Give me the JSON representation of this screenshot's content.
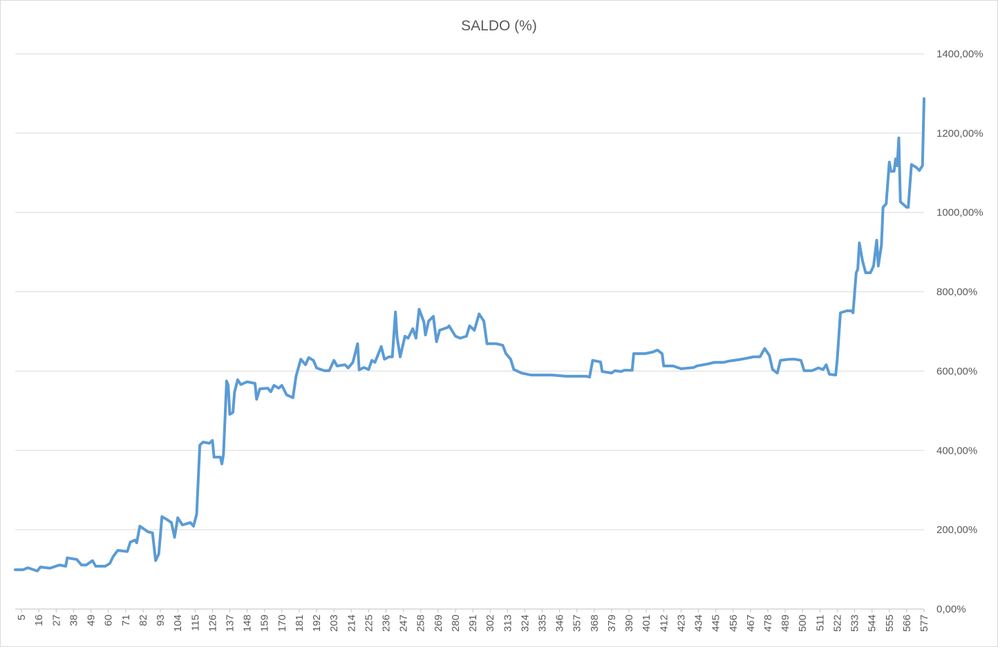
{
  "chart_data": {
    "type": "line",
    "title": "SALDO (%)",
    "color": "#5b9bd5",
    "grid": true,
    "y_axis_side": "right",
    "xlim": [
      1,
      577
    ],
    "xticks": [
      5,
      16,
      27,
      38,
      49,
      60,
      71,
      82,
      93,
      104,
      115,
      126,
      137,
      148,
      159,
      170,
      181,
      192,
      203,
      214,
      225,
      236,
      247,
      258,
      269,
      280,
      291,
      302,
      313,
      324,
      335,
      346,
      357,
      368,
      379,
      390,
      401,
      412,
      423,
      434,
      445,
      456,
      467,
      478,
      489,
      500,
      511,
      522,
      533,
      544,
      555,
      566,
      577
    ],
    "ylim": [
      0,
      1400
    ],
    "yticks": [
      {
        "value": 0,
        "label": "0,00%"
      },
      {
        "value": 200,
        "label": "200,00%"
      },
      {
        "value": 400,
        "label": "400,00%"
      },
      {
        "value": 600,
        "label": "600,00%"
      },
      {
        "value": 800,
        "label": "800,00%"
      },
      {
        "value": 1000,
        "label": "1000,00%"
      },
      {
        "value": 1200,
        "label": "1200,00%"
      },
      {
        "value": 1400,
        "label": "1400,00%"
      }
    ],
    "x": [
      1,
      6,
      9,
      15,
      17,
      23,
      29,
      33,
      34,
      40,
      43,
      46,
      50,
      52,
      58,
      61,
      63,
      66,
      72,
      74,
      77,
      78,
      80,
      85,
      88,
      90,
      92,
      94,
      97,
      100,
      102,
      104,
      107,
      112,
      114,
      116,
      118,
      120,
      124,
      126,
      127,
      131,
      132,
      133,
      135,
      136,
      137,
      139,
      140,
      142,
      144,
      148,
      153,
      154,
      156,
      161,
      163,
      165,
      168,
      170,
      173,
      177,
      179,
      182,
      185,
      187,
      190,
      192,
      197,
      200,
      203,
      205,
      210,
      212,
      215,
      218,
      219,
      222,
      225,
      227,
      229,
      233,
      235,
      238,
      240,
      242,
      243,
      245,
      248,
      250,
      253,
      255,
      257,
      260,
      261,
      263,
      266,
      268,
      270,
      275,
      276,
      280,
      283,
      287,
      289,
      292,
      295,
      298,
      300,
      306,
      310,
      312,
      315,
      317,
      322,
      328,
      341,
      350,
      363,
      365,
      367,
      372,
      373,
      379,
      381,
      385,
      387,
      392,
      393,
      400,
      405,
      408,
      411,
      412,
      418,
      423,
      431,
      433,
      440,
      444,
      450,
      453,
      460,
      464,
      469,
      473,
      476,
      479,
      481,
      484,
      486,
      492,
      495,
      499,
      501,
      506,
      510,
      513,
      515,
      517,
      521,
      522,
      524,
      528,
      531,
      532,
      534,
      535,
      536,
      538,
      540,
      543,
      545,
      547,
      548,
      550,
      551,
      553,
      555,
      556,
      558,
      559,
      560,
      561,
      562,
      566,
      567,
      569,
      572,
      574,
      576,
      577
    ],
    "values": [
      99,
      99,
      104,
      96,
      106,
      103,
      111,
      108,
      129,
      125,
      111,
      111,
      122,
      108,
      108,
      115,
      132,
      148,
      145,
      169,
      174,
      167,
      209,
      195,
      192,
      122,
      139,
      233,
      226,
      218,
      181,
      230,
      212,
      218,
      209,
      239,
      413,
      421,
      418,
      425,
      383,
      383,
      366,
      390,
      575,
      564,
      491,
      496,
      547,
      578,
      566,
      573,
      569,
      529,
      555,
      557,
      548,
      564,
      557,
      564,
      540,
      533,
      587,
      630,
      616,
      634,
      627,
      608,
      601,
      601,
      627,
      613,
      616,
      608,
      622,
      669,
      603,
      609,
      604,
      627,
      622,
      662,
      630,
      636,
      636,
      749,
      686,
      636,
      688,
      683,
      707,
      683,
      756,
      724,
      691,
      726,
      738,
      674,
      703,
      710,
      714,
      688,
      683,
      688,
      714,
      703,
      744,
      726,
      669,
      669,
      665,
      644,
      630,
      604,
      595,
      590,
      590,
      587,
      587,
      585,
      627,
      623,
      599,
      595,
      601,
      599,
      602,
      602,
      644,
      644,
      648,
      653,
      644,
      613,
      613,
      606,
      609,
      613,
      618,
      622,
      622,
      625,
      629,
      632,
      636,
      636,
      657,
      639,
      604,
      595,
      627,
      630,
      630,
      627,
      601,
      601,
      608,
      604,
      616,
      592,
      590,
      630,
      747,
      752,
      752,
      747,
      848,
      857,
      923,
      878,
      848,
      848,
      865,
      930,
      865,
      918,
      1013,
      1022,
      1127,
      1104,
      1104,
      1135,
      1118,
      1188,
      1027,
      1013,
      1013,
      1121,
      1114,
      1106,
      1118,
      1287
    ]
  }
}
